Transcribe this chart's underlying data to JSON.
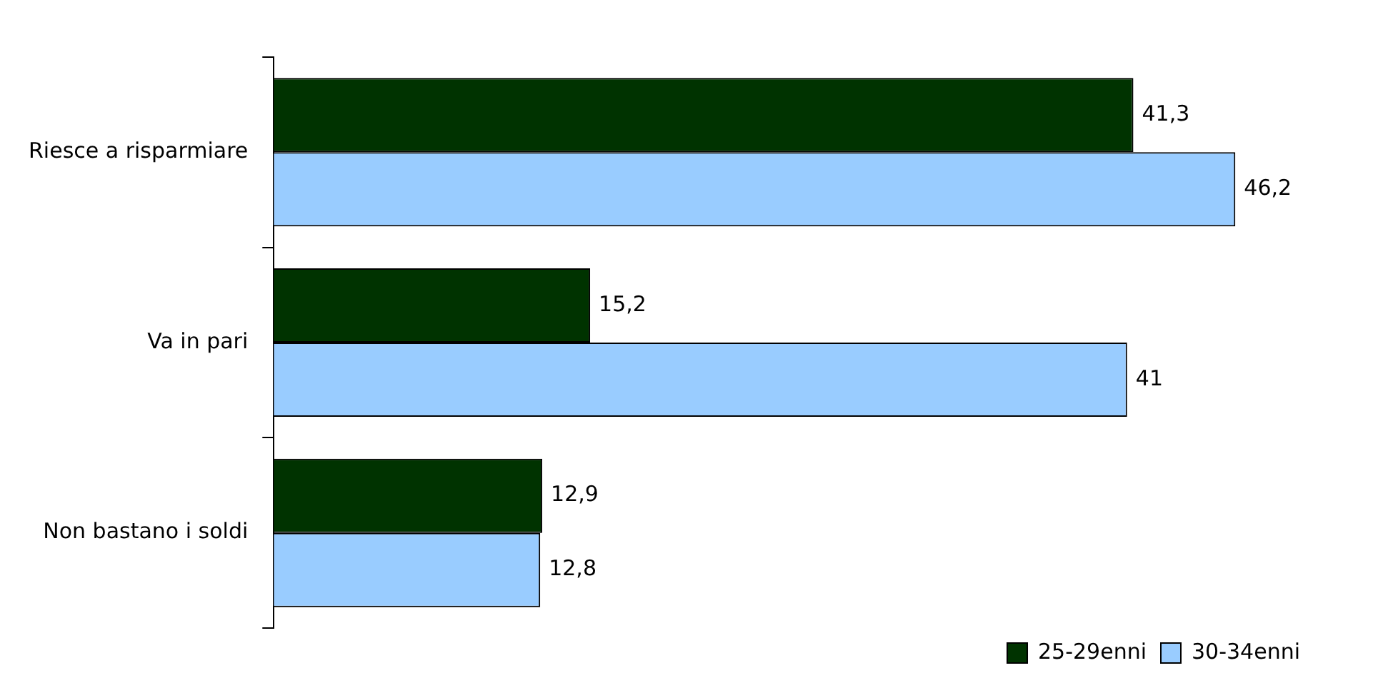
{
  "chart_data": {
    "type": "bar",
    "orientation": "horizontal",
    "categories": [
      "Riesce a risparmiare",
      "Va in pari",
      "Non bastano i soldi"
    ],
    "series": [
      {
        "name": "25-29enni",
        "color": "#003300",
        "values": [
          41.3,
          15.2,
          12.9
        ],
        "value_labels": [
          "41,3",
          "15,2",
          "12,9"
        ]
      },
      {
        "name": "30-34enni",
        "color": "#99ccff",
        "values": [
          46.2,
          41,
          12.8
        ],
        "value_labels": [
          "46,2",
          "41",
          "12,8"
        ]
      }
    ],
    "tick_labels": "y",
    "grid": false,
    "legend": "bottom right"
  }
}
